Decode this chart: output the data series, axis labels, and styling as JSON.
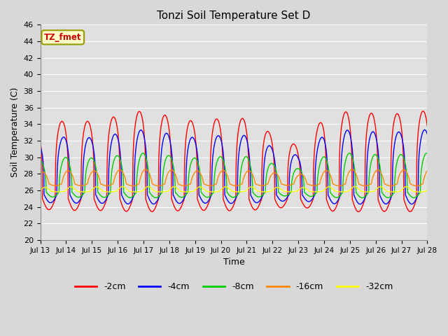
{
  "title": "Tonzi Soil Temperature Set D",
  "xlabel": "Time",
  "ylabel": "Soil Temperature (C)",
  "ylim": [
    20,
    46
  ],
  "xlim_start": 0,
  "xlim_end": 360,
  "fig_bg_color": "#d8d8d8",
  "plot_bg_color": "#e0e0e0",
  "grid_color": "#ffffff",
  "annotation_text": "TZ_fmet",
  "annotation_bg": "#ffffcc",
  "annotation_edge": "#999900",
  "series_colors": [
    "#ff0000",
    "#0000ff",
    "#00cc00",
    "#ff8800",
    "#ffff00"
  ],
  "series_labels": [
    "-2cm",
    "-4cm",
    "-8cm",
    "-16cm",
    "-32cm"
  ],
  "tick_labels": [
    "Jul 13",
    "Jul 14",
    "Jul 15",
    "Jul 16",
    "Jul 17",
    "Jul 18",
    "Jul 19",
    "Jul 20",
    "Jul 21",
    "Jul 22",
    "Jul 23",
    "Jul 24",
    "Jul 25",
    "Jul 26",
    "Jul 27",
    "Jul 28"
  ],
  "tick_positions": [
    0,
    24,
    48,
    72,
    96,
    120,
    144,
    168,
    192,
    216,
    240,
    264,
    288,
    312,
    336,
    360
  ],
  "yticks": [
    20,
    22,
    24,
    26,
    28,
    30,
    32,
    34,
    36,
    38,
    40,
    42,
    44,
    46
  ],
  "period": 24,
  "base_2cm": 25.0,
  "base_4cm": 25.5,
  "base_8cm": 25.8,
  "base_16cm": 26.8,
  "base_32cm": 25.9,
  "amp_2cm": 9.5,
  "amp_4cm": 7.0,
  "amp_8cm": 4.2,
  "amp_16cm": 1.6,
  "amp_32cm": 0.55,
  "phase_lag_4cm": 1.5,
  "phase_lag_8cm": 3.5,
  "phase_lag_16cm": 6.0,
  "phase_lag_32cm": 8.5,
  "sharpness": 3.5,
  "linewidth": 1.0
}
